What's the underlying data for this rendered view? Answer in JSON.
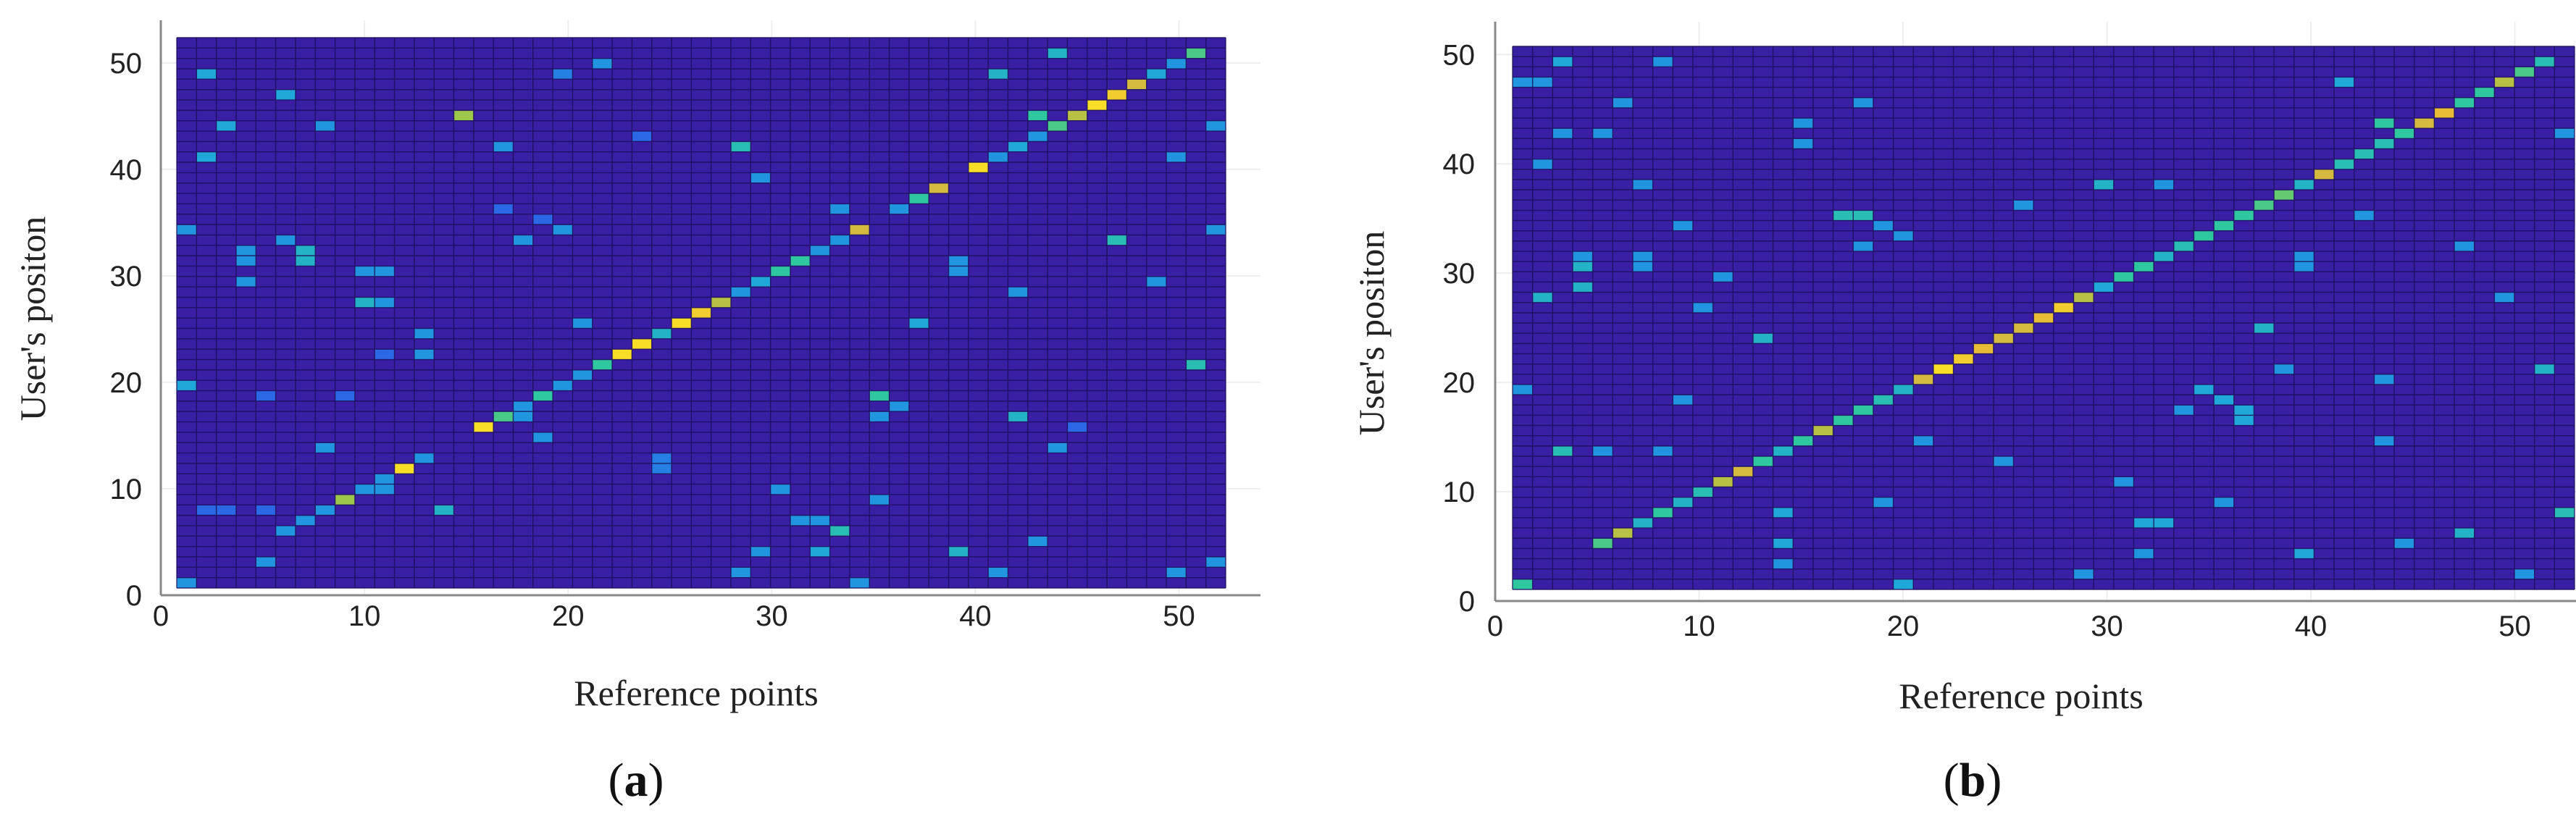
{
  "panels": [
    {
      "caption_open": "(",
      "caption_letter": "a",
      "caption_close": ")"
    },
    {
      "caption_open": "(",
      "caption_letter": "b",
      "caption_close": ")"
    }
  ],
  "chart_data": [
    {
      "type": "heatmap",
      "xlabel": "Reference points",
      "ylabel": "User's positon",
      "xlim": [
        0,
        54
      ],
      "ylim": [
        0,
        54
      ],
      "xticks": [
        0,
        10,
        20,
        30,
        40,
        50
      ],
      "yticks": [
        0,
        10,
        20,
        30,
        40,
        50
      ],
      "grid_size": [
        53,
        53
      ],
      "background_value": 0,
      "colors": {
        "background": "#3a1ea3",
        "grid": "#1b0f5c"
      },
      "colorscale": [
        "#3a1ea3",
        "#2d59e6",
        "#1ea4df",
        "#2ec7a0",
        "#8acb4f",
        "#e7b63a",
        "#ffef1e"
      ],
      "cells": [
        [
          1,
          1,
          0.3
        ],
        [
          2,
          8,
          0.2
        ],
        [
          3,
          8,
          0.2
        ],
        [
          4,
          30,
          0.3
        ],
        [
          4,
          32,
          0.3
        ],
        [
          4,
          33,
          0.3
        ],
        [
          5,
          3,
          0.3
        ],
        [
          5,
          8,
          0.2
        ],
        [
          5,
          19,
          0.2
        ],
        [
          6,
          6,
          0.3
        ],
        [
          6,
          34,
          0.3
        ],
        [
          7,
          7,
          0.3
        ],
        [
          7,
          32,
          0.4
        ],
        [
          7,
          33,
          0.4
        ],
        [
          8,
          8,
          0.3
        ],
        [
          8,
          14,
          0.3
        ],
        [
          9,
          9,
          0.7
        ],
        [
          9,
          19,
          0.2
        ],
        [
          10,
          10,
          0.3
        ],
        [
          10,
          28,
          0.4
        ],
        [
          10,
          31,
          0.3
        ],
        [
          11,
          10,
          0.3
        ],
        [
          11,
          11,
          0.3
        ],
        [
          11,
          23,
          0.2
        ],
        [
          11,
          28,
          0.3
        ],
        [
          11,
          31,
          0.3
        ],
        [
          12,
          12,
          0.95
        ],
        [
          13,
          13,
          0.3
        ],
        [
          13,
          23,
          0.3
        ],
        [
          13,
          25,
          0.3
        ],
        [
          14,
          8,
          0.4
        ],
        [
          15,
          46,
          0.7
        ],
        [
          16,
          16,
          0.95
        ],
        [
          17,
          17,
          0.55
        ],
        [
          17,
          43,
          0.3
        ],
        [
          17,
          37,
          0.2
        ],
        [
          18,
          17,
          0.3
        ],
        [
          18,
          18,
          0.3
        ],
        [
          18,
          34,
          0.3
        ],
        [
          19,
          19,
          0.5
        ],
        [
          19,
          36,
          0.2
        ],
        [
          20,
          20,
          0.3
        ],
        [
          20,
          35,
          0.3
        ],
        [
          21,
          21,
          0.3
        ],
        [
          21,
          26,
          0.3
        ],
        [
          22,
          22,
          0.5
        ],
        [
          22,
          51,
          0.3
        ],
        [
          23,
          23,
          0.95
        ],
        [
          24,
          24,
          0.95
        ],
        [
          25,
          25,
          0.4
        ],
        [
          25,
          12,
          0.25
        ],
        [
          25,
          13,
          0.25
        ],
        [
          26,
          26,
          0.95
        ],
        [
          27,
          27,
          0.9
        ],
        [
          28,
          28,
          0.75
        ],
        [
          29,
          29,
          0.3
        ],
        [
          29,
          43,
          0.45
        ],
        [
          30,
          30,
          0.35
        ],
        [
          30,
          40,
          0.3
        ],
        [
          31,
          31,
          0.5
        ],
        [
          32,
          32,
          0.5
        ],
        [
          33,
          33,
          0.3
        ],
        [
          34,
          34,
          0.3
        ],
        [
          34,
          6,
          0.45
        ],
        [
          34,
          37,
          0.3
        ],
        [
          35,
          35,
          0.8
        ],
        [
          36,
          19,
          0.5
        ],
        [
          36,
          9,
          0.3
        ],
        [
          37,
          18,
          0.3
        ],
        [
          37,
          37,
          0.3
        ],
        [
          38,
          26,
          0.35
        ],
        [
          38,
          38,
          0.5
        ],
        [
          39,
          39,
          0.8
        ],
        [
          40,
          31,
          0.3
        ],
        [
          40,
          4,
          0.4
        ],
        [
          41,
          41,
          0.95
        ],
        [
          42,
          42,
          0.3
        ],
        [
          42,
          50,
          0.4
        ],
        [
          43,
          43,
          0.35
        ],
        [
          44,
          44,
          0.3
        ],
        [
          44,
          46,
          0.5
        ],
        [
          45,
          45,
          0.55
        ],
        [
          46,
          46,
          0.75
        ],
        [
          47,
          47,
          0.95
        ],
        [
          48,
          48,
          0.9
        ],
        [
          48,
          34,
          0.45
        ],
        [
          49,
          49,
          0.8
        ],
        [
          50,
          50,
          0.35
        ],
        [
          51,
          51,
          0.3
        ],
        [
          52,
          52,
          0.55
        ],
        [
          52,
          22,
          0.45
        ],
        [
          53,
          45,
          0.3
        ],
        [
          53,
          35,
          0.3
        ],
        [
          1,
          35,
          0.3
        ],
        [
          1,
          20,
          0.35
        ],
        [
          2,
          50,
          0.35
        ],
        [
          2,
          42,
          0.35
        ],
        [
          3,
          45,
          0.35
        ],
        [
          6,
          48,
          0.35
        ],
        [
          8,
          45,
          0.3
        ],
        [
          19,
          15,
          0.3
        ],
        [
          20,
          50,
          0.25
        ],
        [
          24,
          44,
          0.2
        ],
        [
          29,
          2,
          0.3
        ],
        [
          30,
          4,
          0.3
        ],
        [
          31,
          10,
          0.3
        ],
        [
          32,
          7,
          0.3
        ],
        [
          33,
          4,
          0.35
        ],
        [
          33,
          7,
          0.3
        ],
        [
          35,
          1,
          0.3
        ],
        [
          36,
          17,
          0.3
        ],
        [
          40,
          4,
          0.4
        ],
        [
          40,
          32,
          0.3
        ],
        [
          42,
          2,
          0.3
        ],
        [
          43,
          29,
          0.3
        ],
        [
          43,
          17,
          0.4
        ],
        [
          44,
          5,
          0.3
        ],
        [
          45,
          52,
          0.4
        ],
        [
          45,
          14,
          0.3
        ],
        [
          46,
          16,
          0.2
        ],
        [
          50,
          30,
          0.3
        ],
        [
          51,
          42,
          0.3
        ],
        [
          51,
          2,
          0.3
        ],
        [
          53,
          3,
          0.3
        ]
      ]
    },
    {
      "type": "heatmap",
      "xlabel": "Reference points",
      "ylabel": "User's positon",
      "xlim": [
        0,
        53
      ],
      "ylim": [
        0,
        53
      ],
      "xticks": [
        0,
        10,
        20,
        30,
        40,
        50
      ],
      "yticks": [
        0,
        10,
        20,
        30,
        40,
        50
      ],
      "grid_size": [
        53,
        53
      ],
      "background_value": 0,
      "colors": {
        "background": "#3a1ea3",
        "grid": "#1b0f5c"
      },
      "colorscale": [
        "#3a1ea3",
        "#2d59e6",
        "#1ea4df",
        "#2ec7a0",
        "#8acb4f",
        "#e7b63a",
        "#ffef1e"
      ],
      "cells": [
        [
          1,
          1,
          0.5
        ],
        [
          1,
          20,
          0.3
        ],
        [
          1,
          50,
          0.3
        ],
        [
          2,
          29,
          0.4
        ],
        [
          2,
          42,
          0.3
        ],
        [
          2,
          50,
          0.3
        ],
        [
          3,
          14,
          0.45
        ],
        [
          3,
          45,
          0.3
        ],
        [
          3,
          52,
          0.35
        ],
        [
          4,
          30,
          0.4
        ],
        [
          4,
          32,
          0.4
        ],
        [
          4,
          33,
          0.3
        ],
        [
          5,
          5,
          0.55
        ],
        [
          5,
          14,
          0.3
        ],
        [
          5,
          45,
          0.3
        ],
        [
          6,
          6,
          0.75
        ],
        [
          6,
          48,
          0.3
        ],
        [
          7,
          7,
          0.4
        ],
        [
          7,
          32,
          0.3
        ],
        [
          7,
          33,
          0.3
        ],
        [
          7,
          40,
          0.3
        ],
        [
          8,
          8,
          0.5
        ],
        [
          8,
          14,
          0.3
        ],
        [
          8,
          52,
          0.3
        ],
        [
          9,
          9,
          0.4
        ],
        [
          9,
          19,
          0.3
        ],
        [
          9,
          36,
          0.3
        ],
        [
          10,
          10,
          0.45
        ],
        [
          10,
          28,
          0.3
        ],
        [
          11,
          11,
          0.75
        ],
        [
          11,
          31,
          0.3
        ],
        [
          12,
          12,
          0.8
        ],
        [
          13,
          13,
          0.5
        ],
        [
          13,
          25,
          0.4
        ],
        [
          14,
          14,
          0.4
        ],
        [
          14,
          3,
          0.3
        ],
        [
          14,
          5,
          0.35
        ],
        [
          14,
          8,
          0.35
        ],
        [
          15,
          15,
          0.5
        ],
        [
          15,
          44,
          0.3
        ],
        [
          15,
          46,
          0.3
        ],
        [
          16,
          16,
          0.75
        ],
        [
          17,
          17,
          0.5
        ],
        [
          17,
          37,
          0.45
        ],
        [
          18,
          18,
          0.5
        ],
        [
          18,
          37,
          0.45
        ],
        [
          18,
          34,
          0.3
        ],
        [
          18,
          48,
          0.3
        ],
        [
          19,
          19,
          0.45
        ],
        [
          19,
          36,
          0.3
        ],
        [
          19,
          9,
          0.3
        ],
        [
          20,
          20,
          0.4
        ],
        [
          20,
          35,
          0.3
        ],
        [
          20,
          1,
          0.35
        ],
        [
          21,
          21,
          0.8
        ],
        [
          22,
          22,
          0.95
        ],
        [
          23,
          23,
          0.9
        ],
        [
          24,
          24,
          0.85
        ],
        [
          25,
          25,
          0.8
        ],
        [
          25,
          13,
          0.3
        ],
        [
          26,
          26,
          0.8
        ],
        [
          26,
          38,
          0.3
        ],
        [
          27,
          27,
          0.85
        ],
        [
          28,
          28,
          0.9
        ],
        [
          29,
          29,
          0.75
        ],
        [
          29,
          2,
          0.3
        ],
        [
          30,
          30,
          0.35
        ],
        [
          30,
          40,
          0.4
        ],
        [
          31,
          31,
          0.5
        ],
        [
          31,
          11,
          0.3
        ],
        [
          32,
          32,
          0.5
        ],
        [
          32,
          7,
          0.35
        ],
        [
          32,
          4,
          0.3
        ],
        [
          33,
          33,
          0.4
        ],
        [
          33,
          7,
          0.35
        ],
        [
          33,
          40,
          0.3
        ],
        [
          34,
          34,
          0.45
        ],
        [
          34,
          18,
          0.3
        ],
        [
          35,
          35,
          0.5
        ],
        [
          35,
          20,
          0.35
        ],
        [
          36,
          36,
          0.5
        ],
        [
          36,
          19,
          0.35
        ],
        [
          36,
          9,
          0.3
        ],
        [
          37,
          37,
          0.5
        ],
        [
          37,
          17,
          0.35
        ],
        [
          37,
          18,
          0.35
        ],
        [
          38,
          38,
          0.55
        ],
        [
          38,
          26,
          0.4
        ],
        [
          39,
          39,
          0.6
        ],
        [
          39,
          22,
          0.3
        ],
        [
          40,
          40,
          0.4
        ],
        [
          40,
          4,
          0.35
        ],
        [
          40,
          32,
          0.3
        ],
        [
          40,
          33,
          0.3
        ],
        [
          41,
          41,
          0.8
        ],
        [
          42,
          42,
          0.45
        ],
        [
          42,
          50,
          0.35
        ],
        [
          43,
          43,
          0.45
        ],
        [
          43,
          37,
          0.3
        ],
        [
          44,
          44,
          0.45
        ],
        [
          44,
          46,
          0.5
        ],
        [
          44,
          15,
          0.3
        ],
        [
          45,
          45,
          0.5
        ],
        [
          45,
          5,
          0.3
        ],
        [
          46,
          46,
          0.8
        ],
        [
          47,
          47,
          0.85
        ],
        [
          48,
          48,
          0.5
        ],
        [
          48,
          6,
          0.4
        ],
        [
          48,
          34,
          0.3
        ],
        [
          49,
          49,
          0.5
        ],
        [
          50,
          50,
          0.75
        ],
        [
          50,
          29,
          0.3
        ],
        [
          51,
          51,
          0.55
        ],
        [
          51,
          2,
          0.3
        ],
        [
          52,
          52,
          0.45
        ],
        [
          52,
          22,
          0.4
        ],
        [
          53,
          8,
          0.45
        ],
        [
          53,
          45,
          0.3
        ],
        [
          21,
          15,
          0.3
        ],
        [
          44,
          21,
          0.3
        ]
      ]
    }
  ]
}
